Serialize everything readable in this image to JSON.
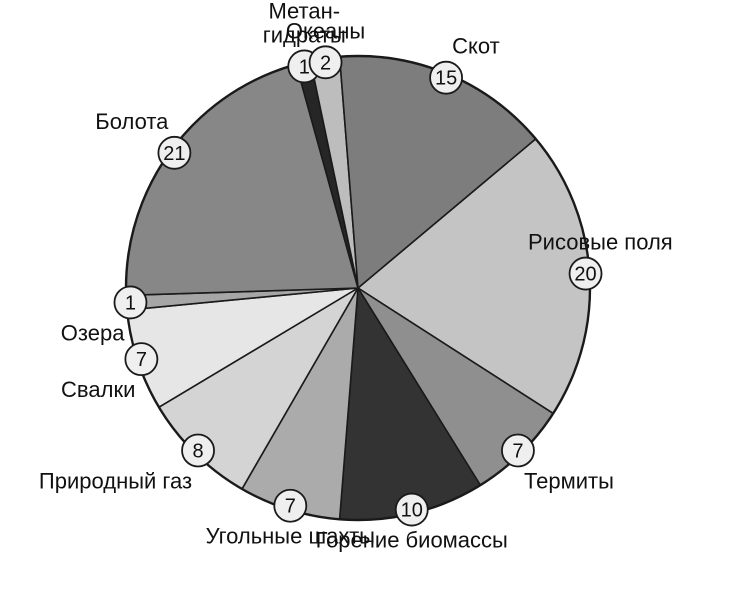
{
  "chart_data": {
    "type": "pie",
    "title": "",
    "unit": "",
    "slices": [
      {
        "label": "Рисовые поля",
        "value": 20,
        "value_label": "20",
        "color": "#c4c4c4"
      },
      {
        "label": "Термиты",
        "value": 7,
        "value_label": "7",
        "color": "#8f8f8f"
      },
      {
        "label": "Горение биомассы",
        "value": 10,
        "value_label": "10",
        "color": "#333333"
      },
      {
        "label": "Угольные шахты",
        "value": 7,
        "value_label": "7",
        "color": "#ababab"
      },
      {
        "label": "Природный газ",
        "value": 8,
        "value_label": "8",
        "color": "#d4d4d4"
      },
      {
        "label": "Свалки",
        "value": 7,
        "value_label": "7",
        "color": "#e6e6e6"
      },
      {
        "label": "Озера",
        "value": 1,
        "value_label": "1",
        "color": "#a6a6a6"
      },
      {
        "label": "Болота",
        "value": 21,
        "value_label": "21",
        "color": "#878787"
      },
      {
        "label": "Метан-\nгидраты",
        "value": 1,
        "value_label": "1",
        "color": "#262626"
      },
      {
        "label": "Океаны",
        "value": 2,
        "value_label": "2",
        "color": "#bdbdbd"
      },
      {
        "label": "Скот",
        "value": 15,
        "value_label": "15",
        "color": "#7d7d7d"
      }
    ]
  }
}
